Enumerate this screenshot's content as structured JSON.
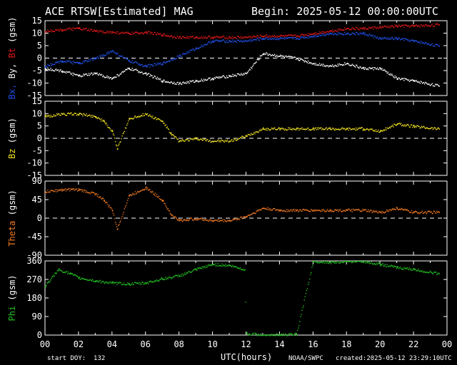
{
  "header": {
    "title": "ACE RTSW[Estimated] MAG",
    "begin": "Begin: 2025-05-12 00:00:00UTC"
  },
  "footer": {
    "start_doy": "start DOY:  132",
    "xlabel": "UTC(hours)",
    "source": "NOAA/SWPC",
    "created": "created:2025-05-12 23:29:10UTC"
  },
  "colors": {
    "bt": "#e01818",
    "bx": "#ffffff",
    "by": "#2050e8",
    "bz": "#f0e020",
    "theta": "#f07820",
    "phi": "#20c020",
    "frame": "#ffffff",
    "zero_line": "#ffffff"
  },
  "chart_data": {
    "type": "scatter",
    "x_unit": "UTC hours",
    "xlim": [
      0,
      24
    ],
    "x_ticks": [
      "00",
      "02",
      "04",
      "06",
      "08",
      "10",
      "12",
      "14",
      "16",
      "18",
      "20",
      "22",
      "00"
    ],
    "panels": [
      {
        "ylabel": [
          {
            "text": "Bx,",
            "color": "#2050e8"
          },
          {
            "text": " By,",
            "color": "#ffffff"
          },
          {
            "text": " Bt",
            "color": "#e01818"
          },
          {
            "text": " (gsm)",
            "color": "#ffffff"
          }
        ],
        "ylim": [
          -15,
          15
        ],
        "y_ticks": [
          15,
          10,
          5,
          0,
          -5,
          -10,
          -15
        ],
        "zero_line": true,
        "series": [
          {
            "name": "Bt",
            "color": "#e01818",
            "x": [
              0,
              1,
              2,
              3,
              4,
              5,
              6,
              7,
              8,
              9,
              10,
              11,
              12,
              13,
              14,
              15,
              16,
              17,
              18,
              19,
              20,
              21,
              22,
              23.5
            ],
            "y": [
              11,
              11.5,
              12,
              11,
              10.5,
              10,
              10.5,
              9.5,
              8.5,
              8.5,
              8.5,
              8.5,
              8.5,
              9,
              9,
              9,
              10,
              11,
              12,
              12,
              12.5,
              13,
              13,
              13.5
            ]
          },
          {
            "name": "Bx",
            "color": "#ffffff",
            "x": [
              0,
              1,
              2,
              3,
              4,
              5,
              6,
              7,
              8,
              9,
              10,
              11,
              12,
              13,
              14,
              15,
              16,
              17,
              18,
              19,
              20,
              21,
              22,
              23.5
            ],
            "y": [
              -4,
              -5,
              -7,
              -6,
              -8,
              -4,
              -6,
              -9,
              -10,
              -9,
              -8,
              -7,
              -6,
              2,
              1,
              0,
              -2,
              -3,
              -2,
              -4,
              -4,
              -8,
              -9,
              -11
            ]
          },
          {
            "name": "By",
            "color": "#2050e8",
            "x": [
              0,
              1,
              2,
              3,
              4,
              5,
              6,
              7,
              8,
              9,
              10,
              11,
              12,
              13,
              14,
              15,
              16,
              17,
              18,
              19,
              20,
              21,
              22,
              23.5
            ],
            "y": [
              -3,
              -1,
              -2,
              0,
              3,
              -1,
              -3,
              -2,
              1,
              4,
              7,
              7,
              7,
              8,
              8,
              8,
              9,
              10,
              10,
              10,
              8,
              8,
              7,
              5
            ]
          }
        ]
      },
      {
        "ylabel": [
          {
            "text": "Bz",
            "color": "#f0e020"
          },
          {
            "text": " (gsm)",
            "color": "#ffffff"
          }
        ],
        "ylim": [
          -15,
          15
        ],
        "y_ticks": [
          15,
          10,
          5,
          0,
          -5,
          -10,
          -15
        ],
        "zero_line": true,
        "series": [
          {
            "name": "Bz",
            "color": "#f0e020",
            "x": [
              0,
              1,
              2,
              3,
              3.5,
              4,
              4.3,
              5,
              6,
              7,
              7.5,
              8,
              9,
              10,
              11,
              12,
              13,
              14,
              15,
              16,
              17,
              18,
              19,
              20,
              21,
              22,
              23.5
            ],
            "y": [
              9,
              10,
              10,
              9,
              7,
              3,
              -4,
              8,
              10,
              7,
              2,
              -1,
              0,
              -1,
              -1,
              1,
              4,
              4,
              4,
              4,
              4,
              4,
              4,
              3,
              6,
              5,
              4
            ]
          }
        ]
      },
      {
        "ylabel": [
          {
            "text": "Theta",
            "color": "#f07820"
          },
          {
            "text": " (gsm)",
            "color": "#ffffff"
          }
        ],
        "ylim": [
          -90,
          90
        ],
        "y_ticks": [
          90,
          45,
          0,
          -45,
          -90
        ],
        "zero_line": true,
        "series": [
          {
            "name": "Theta",
            "color": "#f07820",
            "x": [
              0,
              1,
              2,
              3,
              3.5,
              4,
              4.3,
              5,
              6,
              7,
              7.5,
              8,
              9,
              10,
              11,
              12,
              13,
              14,
              15,
              16,
              17,
              18,
              19,
              20,
              21,
              22,
              23.5
            ],
            "y": [
              65,
              70,
              70,
              60,
              45,
              20,
              -25,
              55,
              75,
              45,
              10,
              -5,
              0,
              -5,
              -5,
              5,
              25,
              20,
              20,
              20,
              20,
              20,
              20,
              15,
              25,
              15,
              15
            ]
          }
        ]
      },
      {
        "ylabel": [
          {
            "text": "Phi",
            "color": "#20c020"
          },
          {
            "text": " (gsm)",
            "color": "#ffffff"
          }
        ],
        "ylim": [
          0,
          360
        ],
        "y_ticks": [
          360,
          270,
          180,
          90,
          0
        ],
        "zero_line": false,
        "series": [
          {
            "name": "Phi",
            "color": "#20c020",
            "x": [
              0,
              0.8,
              1.5,
              2,
              3,
              4,
              5,
              6,
              7,
              8,
              9,
              10,
              11,
              11.9,
              12,
              13,
              14,
              15,
              16,
              17,
              18,
              19,
              20,
              21,
              22,
              23.5
            ],
            "y": [
              240,
              320,
              300,
              280,
              265,
              255,
              250,
              255,
              275,
              290,
              320,
              345,
              340,
              320,
              10,
              2,
              3,
              5,
              360,
              355,
              360,
              360,
              345,
              330,
              320,
              300
            ]
          }
        ]
      }
    ]
  }
}
